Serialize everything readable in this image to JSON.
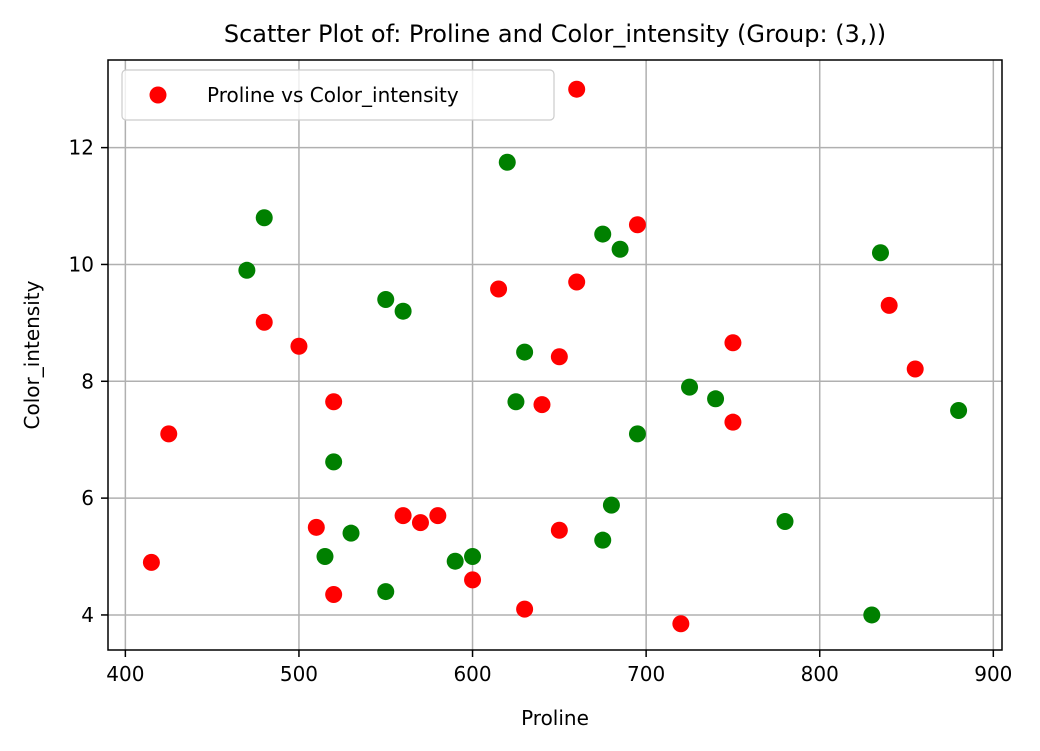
{
  "chart_data": {
    "type": "scatter",
    "title": "Scatter Plot of: Proline and Color_intensity (Group: (3,))",
    "xlabel": "Proline",
    "ylabel": "Color_intensity",
    "xlim": [
      390,
      905
    ],
    "ylim": [
      3.4,
      13.5
    ],
    "xticks": [
      400,
      500,
      600,
      700,
      800,
      900
    ],
    "yticks": [
      4,
      6,
      8,
      10,
      12
    ],
    "grid": true,
    "legend": {
      "position": "upper-left",
      "entries": [
        "Proline vs Color_intensity"
      ]
    },
    "series": [
      {
        "name": "Proline vs Color_intensity",
        "color": "#ff0000",
        "points": [
          {
            "x": 415,
            "y": 4.9
          },
          {
            "x": 425,
            "y": 7.1
          },
          {
            "x": 480,
            "y": 9.01
          },
          {
            "x": 500,
            "y": 8.6
          },
          {
            "x": 510,
            "y": 5.5
          },
          {
            "x": 520,
            "y": 7.65
          },
          {
            "x": 520,
            "y": 4.35
          },
          {
            "x": 560,
            "y": 5.7
          },
          {
            "x": 570,
            "y": 5.58
          },
          {
            "x": 580,
            "y": 5.7
          },
          {
            "x": 600,
            "y": 4.6
          },
          {
            "x": 615,
            "y": 9.58
          },
          {
            "x": 630,
            "y": 4.1
          },
          {
            "x": 640,
            "y": 7.6
          },
          {
            "x": 650,
            "y": 8.42
          },
          {
            "x": 650,
            "y": 5.45
          },
          {
            "x": 660,
            "y": 13.0
          },
          {
            "x": 660,
            "y": 9.7
          },
          {
            "x": 695,
            "y": 10.68
          },
          {
            "x": 720,
            "y": 3.85
          },
          {
            "x": 750,
            "y": 8.66
          },
          {
            "x": 750,
            "y": 7.3
          },
          {
            "x": 840,
            "y": 9.3
          },
          {
            "x": 855,
            "y": 8.21
          }
        ]
      },
      {
        "color": "#008000",
        "points": [
          {
            "x": 470,
            "y": 9.9
          },
          {
            "x": 480,
            "y": 10.8
          },
          {
            "x": 515,
            "y": 5.0
          },
          {
            "x": 520,
            "y": 6.62
          },
          {
            "x": 530,
            "y": 5.4
          },
          {
            "x": 550,
            "y": 9.4
          },
          {
            "x": 550,
            "y": 4.4
          },
          {
            "x": 560,
            "y": 9.2
          },
          {
            "x": 590,
            "y": 4.92
          },
          {
            "x": 600,
            "y": 5.0
          },
          {
            "x": 620,
            "y": 11.75
          },
          {
            "x": 625,
            "y": 7.65
          },
          {
            "x": 630,
            "y": 8.5
          },
          {
            "x": 675,
            "y": 10.52
          },
          {
            "x": 675,
            "y": 5.28
          },
          {
            "x": 680,
            "y": 5.88
          },
          {
            "x": 685,
            "y": 10.26
          },
          {
            "x": 695,
            "y": 7.1
          },
          {
            "x": 725,
            "y": 7.9
          },
          {
            "x": 740,
            "y": 7.7
          },
          {
            "x": 780,
            "y": 5.6
          },
          {
            "x": 830,
            "y": 4.0
          },
          {
            "x": 835,
            "y": 10.2
          },
          {
            "x": 880,
            "y": 7.5
          }
        ]
      }
    ]
  }
}
